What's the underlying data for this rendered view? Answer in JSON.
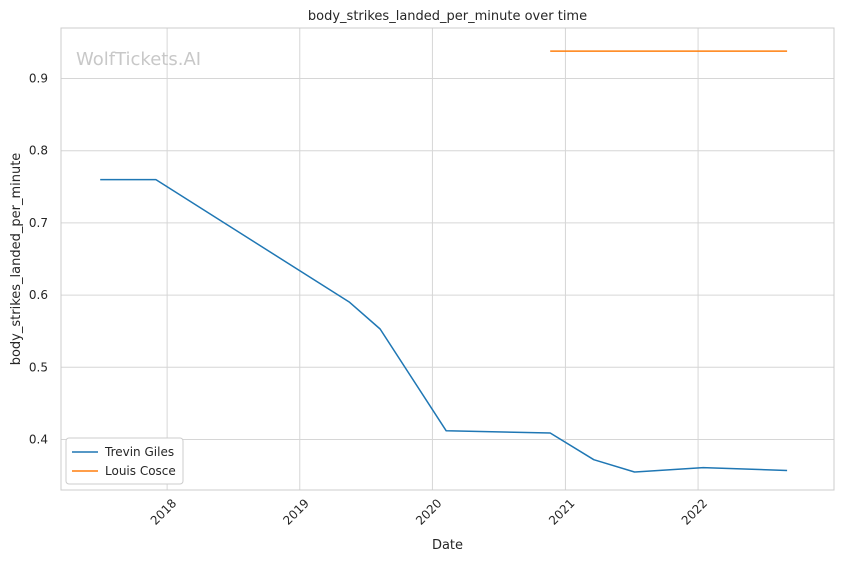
{
  "watermark": "WolfTickets.AI",
  "chart_data": {
    "type": "line",
    "title": "body_strikes_landed_per_minute over time",
    "xlabel": "Date",
    "ylabel": "body_strikes_landed_per_minute",
    "xlim": [
      "2017-03-15",
      "2023-01-10"
    ],
    "ylim": [
      0.33,
      0.97
    ],
    "x_ticks": [
      "2018-01-01",
      "2019-01-01",
      "2020-01-01",
      "2021-01-01",
      "2022-01-01"
    ],
    "x_tick_labels": [
      "2018",
      "2019",
      "2020",
      "2021",
      "2022"
    ],
    "y_ticks": [
      0.4,
      0.5,
      0.6,
      0.7,
      0.8,
      0.9
    ],
    "y_tick_labels": [
      "0.4",
      "0.5",
      "0.6",
      "0.7",
      "0.8",
      "0.9"
    ],
    "grid": true,
    "legend_position": "lower-left",
    "series": [
      {
        "name": "Trevin Giles",
        "color": "#1f77b4",
        "x": [
          "2017-07-01",
          "2017-12-01",
          "2019-05-18",
          "2019-08-10",
          "2020-02-08",
          "2020-11-20",
          "2021-03-20",
          "2021-07-10",
          "2022-01-15",
          "2022-09-03"
        ],
        "y": [
          0.76,
          0.76,
          0.59,
          0.553,
          0.412,
          0.409,
          0.372,
          0.355,
          0.361,
          0.357
        ]
      },
      {
        "name": "Louis Cosce",
        "color": "#ff7f0e",
        "x": [
          "2020-11-20",
          "2022-09-03"
        ],
        "y": [
          0.938,
          0.938
        ]
      }
    ]
  }
}
